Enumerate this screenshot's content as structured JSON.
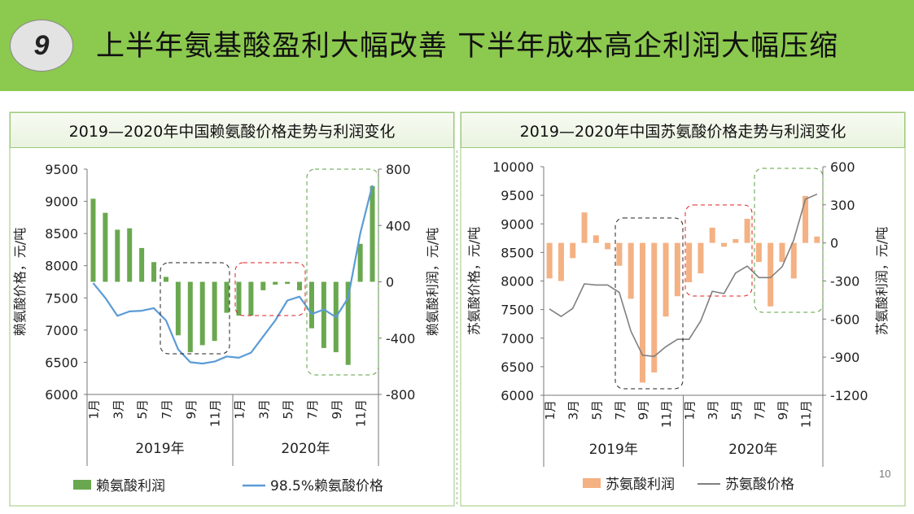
{
  "header": {
    "badge_number": "9",
    "title": "上半年氨基酸盈利大幅改善 下半年成本高企利润大幅压缩"
  },
  "page_number": "10",
  "colors": {
    "header_green": "#8cc94f",
    "lysine_profit_bar": "#6aa84f",
    "lysine_price_line": "#5b9bd5",
    "threonine_profit_bar": "#f4b183",
    "threonine_price_line": "#7f7f7f"
  },
  "chart_data": [
    {
      "type": "bar+line",
      "title": "2019—2020年中国赖氨酸价格走势与利润变化",
      "month_labels": [
        "1月",
        "",
        "3月",
        "",
        "5月",
        "",
        "7月",
        "",
        "9月",
        "",
        "11月",
        "",
        "1月",
        "",
        "3月",
        "",
        "5月",
        "",
        "7月",
        "",
        "9月",
        "",
        "11月",
        ""
      ],
      "year_labels": [
        "2019年",
        "2020年"
      ],
      "ylabel_left": "赖氨酸价格，元/吨",
      "ylabel_right": "赖氨酸利润，元/吨",
      "ylim_left": [
        6000,
        9500
      ],
      "ylim_right": [
        -800,
        800
      ],
      "left_ticks": [
        "9500",
        "9000",
        "8500",
        "8000",
        "7500",
        "7000",
        "6500",
        "6000"
      ],
      "right_ticks": [
        "800",
        "400",
        "0",
        "-400",
        "-800"
      ],
      "legend_position": "bottom",
      "series": [
        {
          "name": "赖氨酸利润",
          "type": "bar",
          "axis": "right",
          "values": [
            590,
            490,
            370,
            380,
            240,
            140,
            35,
            -380,
            -500,
            -450,
            -420,
            -220,
            -240,
            -240,
            -60,
            -20,
            -15,
            -60,
            -330,
            -470,
            -500,
            -590,
            270,
            680
          ]
        },
        {
          "name": "98.5%赖氨酸价格",
          "type": "line",
          "axis": "left",
          "values": [
            7730,
            7500,
            7220,
            7290,
            7300,
            7340,
            7150,
            6700,
            6500,
            6480,
            6510,
            6590,
            6570,
            6650,
            6900,
            7150,
            7460,
            7520,
            7250,
            7320,
            7200,
            7500,
            8500,
            9250
          ]
        }
      ]
    },
    {
      "type": "bar+line",
      "title": "2019—2020年中国苏氨酸价格走势与利润变化",
      "month_labels": [
        "1月",
        "",
        "3月",
        "",
        "5月",
        "",
        "7月",
        "",
        "9月",
        "",
        "11月",
        "",
        "1月",
        "",
        "3月",
        "",
        "5月",
        "",
        "7月",
        "",
        "9月",
        "",
        "11月",
        ""
      ],
      "year_labels": [
        "2019年",
        "2020年"
      ],
      "ylabel_left": "苏氨酸价格，元/吨",
      "ylabel_right": "苏氨酸利润，元/吨",
      "ylim_left": [
        6000,
        10000
      ],
      "ylim_right": [
        -1200,
        600
      ],
      "left_ticks": [
        "10000",
        "9500",
        "9000",
        "8500",
        "8000",
        "7500",
        "7000",
        "6500",
        "6000"
      ],
      "right_ticks": [
        "600",
        "300",
        "0",
        "-300",
        "-600",
        "-900",
        "-1200"
      ],
      "legend_position": "bottom",
      "series": [
        {
          "name": "苏氨酸利润",
          "type": "bar",
          "axis": "right",
          "values": [
            -280,
            -300,
            -120,
            240,
            60,
            -50,
            -180,
            -440,
            -1100,
            -1020,
            -580,
            -420,
            -310,
            -240,
            120,
            -30,
            30,
            190,
            -150,
            -500,
            -150,
            -280,
            370,
            50
          ]
        },
        {
          "name": "苏氨酸价格",
          "type": "line",
          "axis": "left",
          "values": [
            7510,
            7380,
            7520,
            7950,
            7930,
            7930,
            7800,
            7120,
            6700,
            6680,
            6850,
            6980,
            6980,
            7300,
            7820,
            7780,
            8140,
            8260,
            8060,
            8060,
            8250,
            8720,
            9430,
            9520
          ]
        }
      ]
    }
  ]
}
